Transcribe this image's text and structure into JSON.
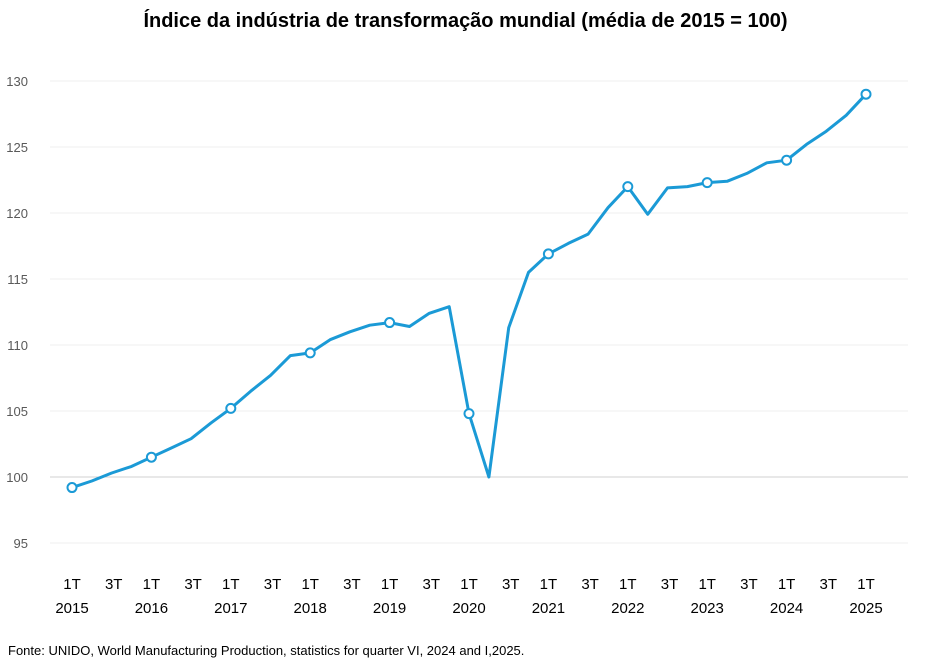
{
  "chart_data": {
    "type": "line",
    "title": "Índice da indústria de transformação mundial (média de 2015 = 100)",
    "xlabel": "",
    "ylabel": "",
    "ylim": [
      95,
      130
    ],
    "yticks": [
      95,
      100,
      105,
      110,
      115,
      120,
      125,
      130
    ],
    "grid": true,
    "legend": "none",
    "line_color": "#1b9ad6",
    "x": [
      "1T 2015",
      "2T 2015",
      "3T 2015",
      "4T 2015",
      "1T 2016",
      "2T 2016",
      "3T 2016",
      "4T 2016",
      "1T 2017",
      "2T 2017",
      "3T 2017",
      "4T 2017",
      "1T 2018",
      "2T 2018",
      "3T 2018",
      "4T 2018",
      "1T 2019",
      "2T 2019",
      "3T 2019",
      "4T 2019",
      "1T 2020",
      "2T 2020",
      "3T 2020",
      "4T 2020",
      "1T 2021",
      "2T 2021",
      "3T 2021",
      "4T 2021",
      "1T 2022",
      "2T 2022",
      "3T 2022",
      "4T 2022",
      "1T 2023",
      "2T 2023",
      "3T 2023",
      "4T 2023",
      "1T 2024",
      "2T 2024",
      "3T 2024",
      "4T 2024",
      "1T 2025"
    ],
    "values": [
      99.2,
      99.7,
      100.3,
      100.8,
      101.5,
      102.2,
      102.9,
      104.1,
      105.2,
      106.5,
      107.7,
      109.2,
      109.4,
      110.4,
      111.0,
      111.5,
      111.7,
      111.4,
      112.4,
      112.9,
      104.8,
      100.0,
      111.3,
      115.5,
      116.9,
      117.7,
      118.4,
      120.4,
      122.0,
      119.9,
      121.9,
      122.0,
      122.3,
      122.4,
      123.0,
      123.8,
      124.0,
      125.2,
      126.2,
      127.4,
      129.0
    ],
    "marked_points": [
      0,
      4,
      8,
      12,
      16,
      20,
      24,
      28,
      32,
      36,
      40
    ],
    "x_tick_labels": [
      {
        "top": "1T",
        "bottom": "2015"
      },
      {
        "top": "3T",
        "bottom": ""
      },
      {
        "top": "1T",
        "bottom": "2016"
      },
      {
        "top": "3T",
        "bottom": ""
      },
      {
        "top": "1T",
        "bottom": "2017"
      },
      {
        "top": "3T",
        "bottom": ""
      },
      {
        "top": "1T",
        "bottom": "2018"
      },
      {
        "top": "3T",
        "bottom": ""
      },
      {
        "top": "1T",
        "bottom": "2019"
      },
      {
        "top": "3T",
        "bottom": ""
      },
      {
        "top": "1T",
        "bottom": "2020"
      },
      {
        "top": "3T",
        "bottom": ""
      },
      {
        "top": "1T",
        "bottom": "2021"
      },
      {
        "top": "3T",
        "bottom": ""
      },
      {
        "top": "1T",
        "bottom": "2022"
      },
      {
        "top": "3T",
        "bottom": ""
      },
      {
        "top": "1T",
        "bottom": "2023"
      },
      {
        "top": "3T",
        "bottom": ""
      },
      {
        "top": "1T",
        "bottom": "2024"
      },
      {
        "top": "3T",
        "bottom": ""
      },
      {
        "top": "1T",
        "bottom": "2025"
      }
    ]
  },
  "source_note": "Fonte: UNIDO, World  Manufacturing Production,  statistics for quarter VI, 2024 and I,2025."
}
